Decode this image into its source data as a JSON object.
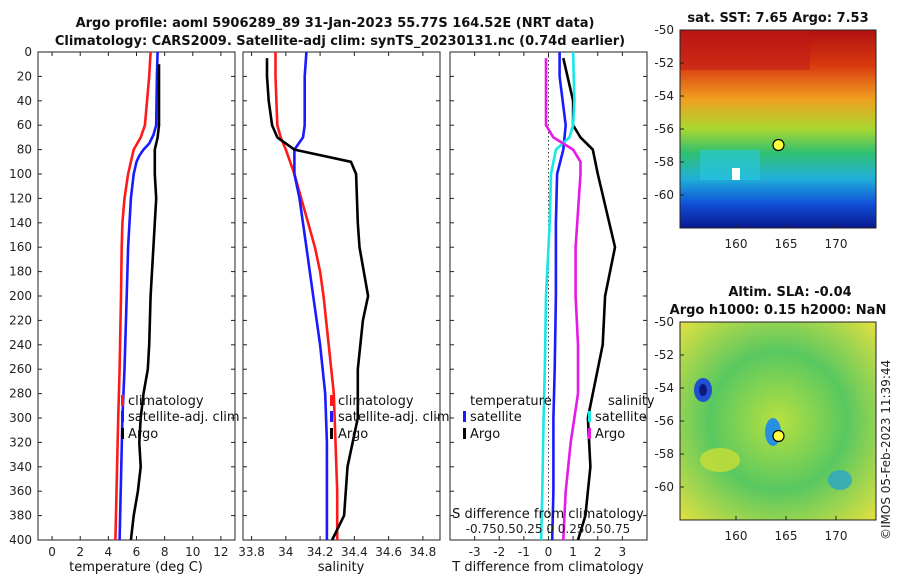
{
  "title": {
    "line1": "Argo profile: aoml 5906289_89 31-Jan-2023 55.77S 164.52E (NRT data)",
    "line2": "Climatology: CARS2009. Satellite-adj clim: synTS_20230131.nc (0.74d earlier)"
  },
  "colors": {
    "climatology": "#ff1a1a",
    "satellite": "#1a1aff",
    "argo": "#000000",
    "sat_salinity": "#19e6e6",
    "argo_salinity": "#e619e6"
  },
  "chart_data": [
    {
      "id": "temperature",
      "type": "line",
      "xlabel": "temperature (deg C)",
      "ylabel": "",
      "xlim": [
        -1,
        13
      ],
      "ylim": [
        400,
        0
      ],
      "xticks": [
        "0",
        "2",
        "4",
        "6",
        "8",
        "10",
        "12"
      ],
      "xtick_values": [
        0,
        2,
        4,
        6,
        8,
        10,
        12
      ],
      "yticks": [
        "0",
        "20",
        "40",
        "60",
        "80",
        "100",
        "120",
        "140",
        "160",
        "180",
        "200",
        "220",
        "240",
        "260",
        "280",
        "300",
        "320",
        "340",
        "360",
        "380",
        "400"
      ],
      "legend": [
        "climatology",
        "satellite-adj. clim",
        "Argo"
      ],
      "series": [
        {
          "name": "climatology",
          "color": "climatology",
          "depth": [
            0,
            20,
            60,
            70,
            80,
            90,
            100,
            120,
            140,
            160,
            200,
            260,
            300,
            350,
            400
          ],
          "values": [
            7.0,
            6.9,
            6.6,
            6.3,
            5.8,
            5.6,
            5.4,
            5.15,
            5.0,
            4.95,
            4.9,
            4.8,
            4.7,
            4.6,
            4.5
          ]
        },
        {
          "name": "satellite-adj. clim",
          "color": "satellite",
          "depth": [
            0,
            20,
            60,
            68,
            75,
            80,
            85,
            90,
            100,
            120,
            140,
            160,
            200,
            260,
            300,
            350,
            400
          ],
          "values": [
            7.5,
            7.45,
            7.4,
            7.2,
            6.9,
            6.5,
            6.2,
            6.0,
            5.8,
            5.6,
            5.5,
            5.4,
            5.3,
            5.15,
            5.0,
            4.9,
            4.8
          ]
        },
        {
          "name": "Argo",
          "color": "argo",
          "depth": [
            10,
            60,
            70,
            80,
            90,
            100,
            120,
            160,
            200,
            240,
            260,
            280,
            300,
            320,
            340,
            360,
            380,
            400
          ],
          "values": [
            7.6,
            7.6,
            7.5,
            7.3,
            7.3,
            7.3,
            7.4,
            7.2,
            7.0,
            6.9,
            6.8,
            6.5,
            6.3,
            6.2,
            6.3,
            6.1,
            5.8,
            5.6
          ]
        }
      ]
    },
    {
      "id": "salinity",
      "type": "line",
      "xlabel": "salinity",
      "xlim": [
        33.75,
        34.9
      ],
      "ylim": [
        400,
        0
      ],
      "xticks": [
        "33.8",
        "34",
        "34.2",
        "34.4",
        "34.6",
        "34.8"
      ],
      "xtick_values": [
        33.8,
        34.0,
        34.2,
        34.4,
        34.6,
        34.8
      ],
      "legend": [
        "climatology",
        "satellite-adj. clim",
        "Argo"
      ],
      "series": [
        {
          "name": "climatology",
          "color": "climatology",
          "depth": [
            0,
            20,
            60,
            70,
            80,
            100,
            120,
            140,
            160,
            180,
            200,
            240,
            280,
            320,
            360,
            400
          ],
          "values": [
            33.94,
            33.94,
            33.95,
            33.97,
            34.0,
            34.05,
            34.09,
            34.13,
            34.17,
            34.2,
            34.22,
            34.25,
            34.28,
            34.29,
            34.3,
            34.3
          ]
        },
        {
          "name": "satellite-adj. clim",
          "color": "satellite",
          "depth": [
            0,
            20,
            60,
            70,
            80,
            100,
            120,
            160,
            200,
            240,
            280,
            320,
            360,
            400
          ],
          "values": [
            34.12,
            34.11,
            34.11,
            34.1,
            34.05,
            34.05,
            34.08,
            34.12,
            34.16,
            34.2,
            34.23,
            34.24,
            34.24,
            34.24
          ]
        },
        {
          "name": "Argo",
          "color": "argo",
          "depth": [
            5,
            20,
            40,
            60,
            70,
            80,
            90,
            100,
            140,
            160,
            200,
            220,
            260,
            300,
            340,
            380,
            400
          ],
          "values": [
            33.89,
            33.89,
            33.9,
            33.92,
            33.95,
            34.05,
            34.38,
            34.41,
            34.42,
            34.43,
            34.48,
            34.45,
            34.42,
            34.42,
            34.36,
            34.34,
            34.27
          ]
        }
      ]
    },
    {
      "id": "difference",
      "type": "line",
      "xlabel": "T difference from climatology",
      "xlabel2": "S difference from climatology",
      "xlim": [
        -4,
        4
      ],
      "ylim": [
        400,
        0
      ],
      "xticks": [
        "-3",
        "-2",
        "-1",
        "0",
        "1",
        "2",
        "3"
      ],
      "xtick_values": [
        -3,
        -2,
        -1,
        0,
        1,
        2,
        3
      ],
      "xticks2_label": "-0.750.50.25 0 0.250.50.75",
      "legend_left": {
        "title": "temperature",
        "items": [
          "satellite",
          "Argo"
        ]
      },
      "legend_right": {
        "title": "salinity",
        "items": [
          "satellite",
          "Argo"
        ]
      },
      "series": [
        {
          "name": "T satellite",
          "color": "satellite",
          "depth": [
            0,
            20,
            60,
            80,
            100,
            140,
            200,
            260,
            300,
            360,
            400
          ],
          "values": [
            0.45,
            0.45,
            0.7,
            0.6,
            0.35,
            0.3,
            0.3,
            0.25,
            0.2,
            0.2,
            0.15
          ]
        },
        {
          "name": "T Argo",
          "color": "argo",
          "depth": [
            5,
            40,
            60,
            70,
            80,
            100,
            160,
            200,
            240,
            280,
            300,
            340,
            380,
            400
          ],
          "values": [
            0.6,
            1.0,
            1.0,
            1.3,
            1.8,
            2.0,
            2.7,
            2.3,
            2.2,
            1.8,
            1.6,
            1.7,
            1.5,
            1.2
          ]
        },
        {
          "name": "S satellite",
          "color": "sat_salinity",
          "depth": [
            0,
            40,
            60,
            70,
            80,
            100,
            140,
            200,
            260,
            300,
            360,
            400
          ],
          "values": [
            1.0,
            1.05,
            1.0,
            0.85,
            0.3,
            0.1,
            0.05,
            -0.1,
            -0.15,
            -0.2,
            -0.25,
            -0.3
          ]
        },
        {
          "name": "S Argo",
          "color": "argo_salinity",
          "depth": [
            5,
            60,
            70,
            80,
            90,
            100,
            160,
            200,
            240,
            280,
            320,
            360,
            400
          ],
          "values": [
            -0.1,
            -0.1,
            0.2,
            1.0,
            1.3,
            1.3,
            1.1,
            1.1,
            1.2,
            1.2,
            0.9,
            0.7,
            0.6
          ]
        }
      ]
    }
  ],
  "maps": {
    "sst": {
      "title": "sat. SST: 7.65 Argo: 7.53",
      "yticks": [
        "-50",
        "-52",
        "-54",
        "-56",
        "-58",
        "-60"
      ],
      "xticks": [
        "160",
        "165",
        "170"
      ]
    },
    "sla": {
      "title1": "Altim. SLA: -0.04",
      "title2": "Argo h1000: 0.15 h2000: NaN",
      "yticks": [
        "-50",
        "-52",
        "-54",
        "-56",
        "-58",
        "-60"
      ],
      "xticks": [
        "160",
        "165",
        "170"
      ]
    }
  },
  "watermark": "©IMOS 05-Feb-2023 11:39:44"
}
